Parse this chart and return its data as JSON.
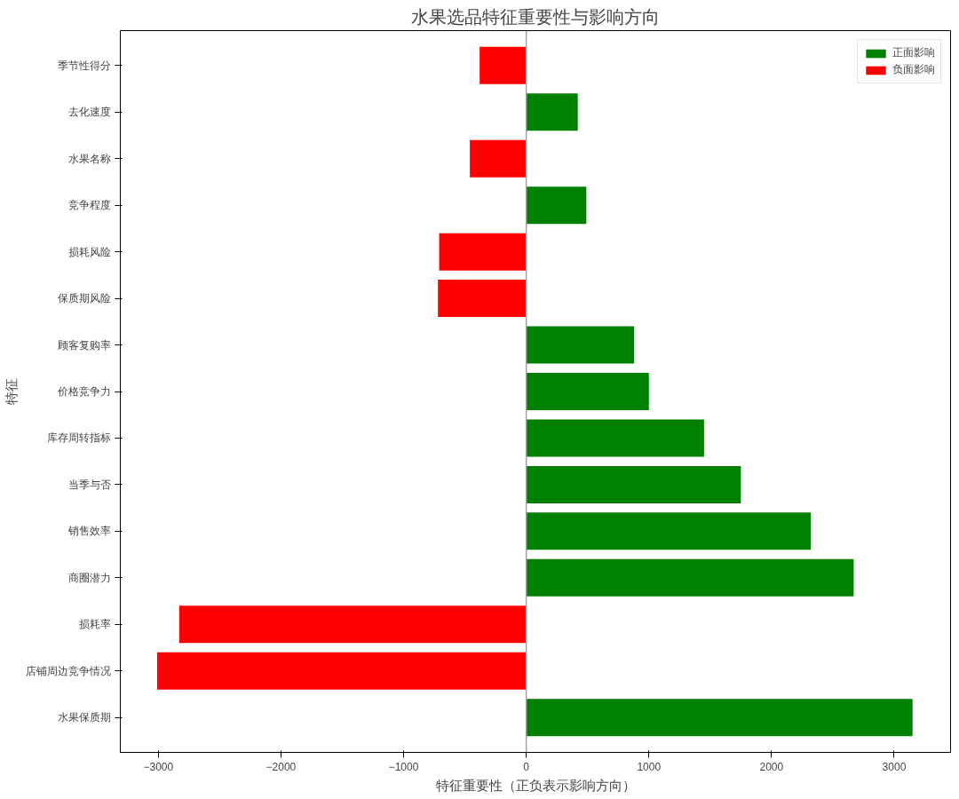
{
  "chart_data": {
    "type": "bar",
    "orientation": "horizontal",
    "title": "水果选品特征重要性与影响方向",
    "xlabel": "特征重要性（正负表示影响方向）",
    "ylabel": "特征",
    "categories": [
      "季节性得分",
      "去化速度",
      "水果名称",
      "竞争程度",
      "损耗风险",
      "保质期风险",
      "顾客复购率",
      "价格竞争力",
      "库存周转指标",
      "当季与否",
      "销售效率",
      "商圈潜力",
      "损耗率",
      "店铺周边竞争情况",
      "水果保质期"
    ],
    "series": [
      {
        "name": "正面影响",
        "color": "#008000",
        "values": [
          null,
          420,
          null,
          490,
          null,
          null,
          880,
          1000,
          1450,
          1750,
          2320,
          2670,
          null,
          null,
          3150
        ]
      },
      {
        "name": "负面影响",
        "color": "#ff0000",
        "values": [
          -380,
          null,
          -460,
          null,
          -710,
          -720,
          null,
          null,
          null,
          null,
          null,
          null,
          -2830,
          -3010,
          null
        ]
      }
    ],
    "xlim": [
      -3310,
      3460
    ],
    "xticks": [
      {
        "value": -3000,
        "label": "−3000"
      },
      {
        "value": -2000,
        "label": "−2000"
      },
      {
        "value": -1000,
        "label": "−1000"
      },
      0,
      1000,
      2000,
      3000
    ],
    "ref_lines": [
      {
        "axis": "x",
        "value": 0,
        "color": "#a0a0a0"
      }
    ],
    "legend": "top right",
    "grid": false
  }
}
